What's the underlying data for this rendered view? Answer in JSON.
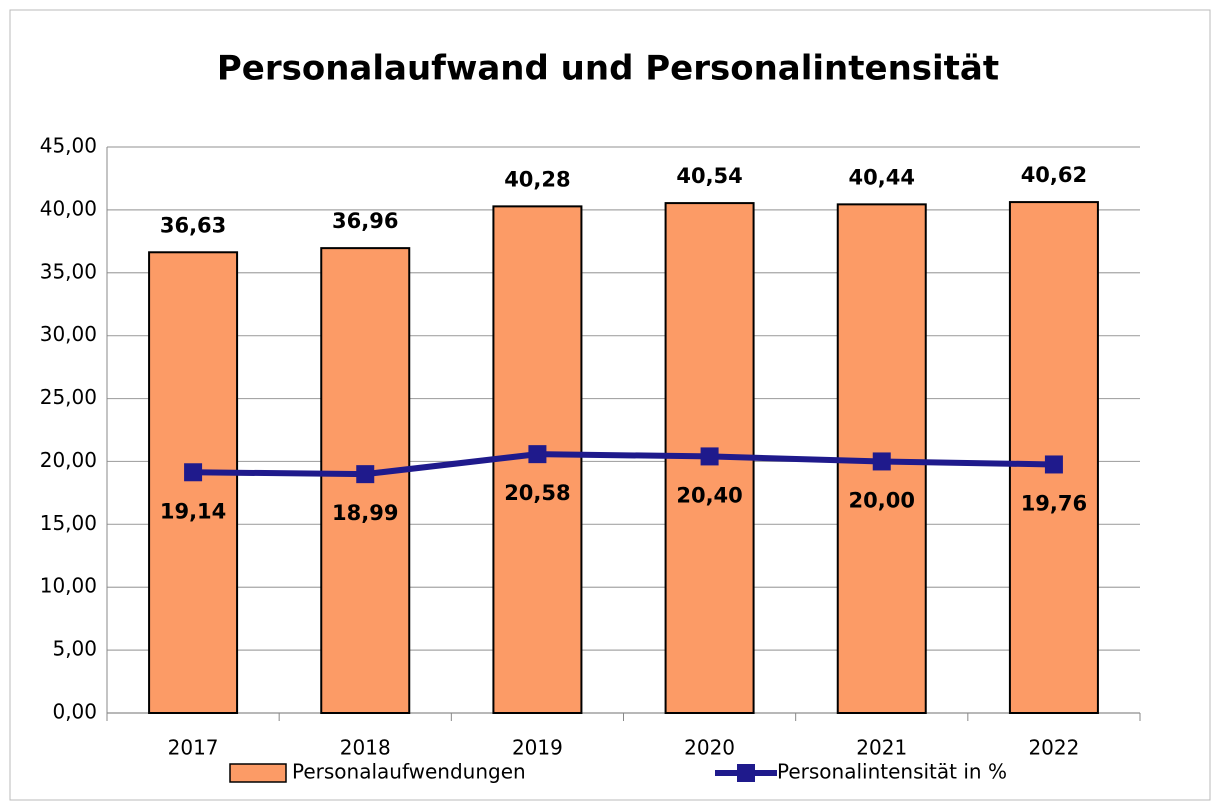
{
  "chart_data": {
    "type": "bar",
    "title": "Personalaufwand und Personalintensität",
    "categories": [
      "2017",
      "2018",
      "2019",
      "2020",
      "2021",
      "2022"
    ],
    "series": [
      {
        "name": "Personalaufwendungen",
        "type": "bar",
        "color": "#fc9b66",
        "values": [
          36.63,
          36.96,
          40.28,
          40.54,
          40.44,
          40.62
        ],
        "value_labels": [
          "36,63",
          "36,96",
          "40,28",
          "40,54",
          "40,44",
          "40,62"
        ]
      },
      {
        "name": "Personalintensität in %",
        "type": "line",
        "color": "#1f1a8c",
        "values": [
          19.14,
          18.99,
          20.58,
          20.4,
          20.0,
          19.76
        ],
        "value_labels": [
          "19,14",
          "18,99",
          "20,58",
          "20,40",
          "20,00",
          "19,76"
        ]
      }
    ],
    "ylim": [
      0,
      45
    ],
    "yticks": [
      {
        "value": 0,
        "label": "0,00"
      },
      {
        "value": 5,
        "label": "5,00"
      },
      {
        "value": 10,
        "label": "10,00"
      },
      {
        "value": 15,
        "label": "15,00"
      },
      {
        "value": 20,
        "label": "20,00"
      },
      {
        "value": 25,
        "label": "25,00"
      },
      {
        "value": 30,
        "label": "30,00"
      },
      {
        "value": 35,
        "label": "35,00"
      },
      {
        "value": 40,
        "label": "40,00"
      },
      {
        "value": 45,
        "label": "45,00"
      }
    ],
    "grid": true,
    "legend": "bottom"
  }
}
